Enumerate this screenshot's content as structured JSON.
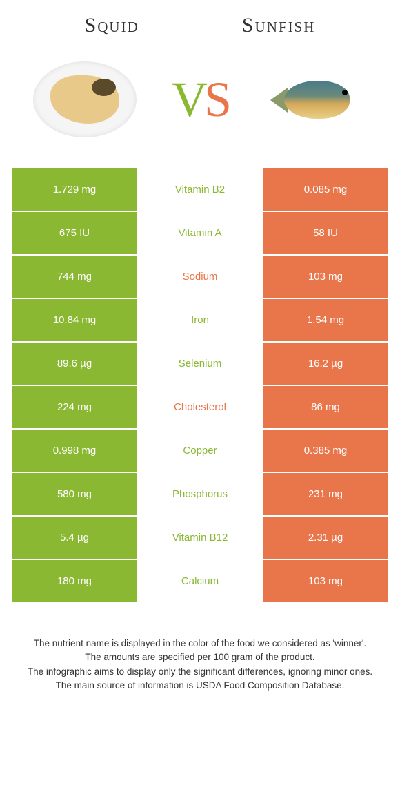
{
  "colors": {
    "green": "#8ab833",
    "orange": "#e8764a",
    "text": "#333333",
    "bg": "#ffffff"
  },
  "left": {
    "title": "Squid"
  },
  "right": {
    "title": "Sunfish"
  },
  "vs": {
    "v": "V",
    "s": "S"
  },
  "rows": [
    {
      "left": "1.729 mg",
      "mid": "Vitamin B2",
      "winner": "green",
      "right": "0.085 mg"
    },
    {
      "left": "675 IU",
      "mid": "Vitamin A",
      "winner": "green",
      "right": "58 IU"
    },
    {
      "left": "744 mg",
      "mid": "Sodium",
      "winner": "orange",
      "right": "103 mg"
    },
    {
      "left": "10.84 mg",
      "mid": "Iron",
      "winner": "green",
      "right": "1.54 mg"
    },
    {
      "left": "89.6 µg",
      "mid": "Selenium",
      "winner": "green",
      "right": "16.2 µg"
    },
    {
      "left": "224 mg",
      "mid": "Cholesterol",
      "winner": "orange",
      "right": "86 mg"
    },
    {
      "left": "0.998 mg",
      "mid": "Copper",
      "winner": "green",
      "right": "0.385 mg"
    },
    {
      "left": "580 mg",
      "mid": "Phosphorus",
      "winner": "green",
      "right": "231 mg"
    },
    {
      "left": "5.4 µg",
      "mid": "Vitamin B12",
      "winner": "green",
      "right": "2.31 µg"
    },
    {
      "left": "180 mg",
      "mid": "Calcium",
      "winner": "green",
      "right": "103 mg"
    }
  ],
  "footer": {
    "l1": "The nutrient name is displayed in the color of the food we considered as 'winner'.",
    "l2": "The amounts are specified per 100 gram of the product.",
    "l3": "The infographic aims to display only the significant differences, ignoring minor ones.",
    "l4": "The main source of information is USDA Food Composition Database."
  }
}
